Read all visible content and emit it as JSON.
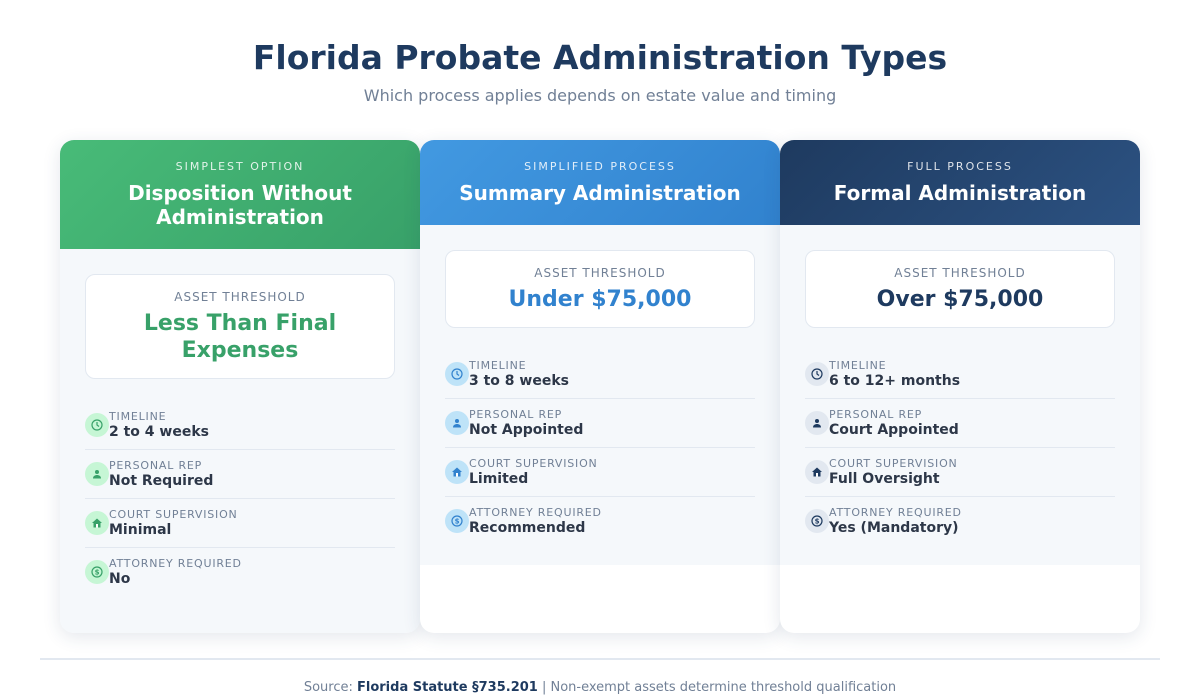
{
  "header": {
    "title": "Florida Probate Administration Types",
    "subtitle": "Which process applies depends on estate value and timing"
  },
  "cards": [
    {
      "label": "SIMPLEST OPTION",
      "name": "Disposition Without Administration",
      "threshold_label": "ASSET THRESHOLD",
      "threshold": "Less Than Final Expenses",
      "accent": "#38a169",
      "rows": [
        {
          "icon": "clock-icon",
          "label": "TIMELINE",
          "value": "2 to 4 weeks"
        },
        {
          "icon": "person-icon",
          "label": "PERSONAL REP",
          "value": "Not Required"
        },
        {
          "icon": "courthouse-icon",
          "label": "COURT SUPERVISION",
          "value": "Minimal"
        },
        {
          "icon": "dollar-icon",
          "label": "ATTORNEY REQUIRED",
          "value": "No"
        }
      ]
    },
    {
      "label": "SIMPLIFIED PROCESS",
      "name": "Summary Administration",
      "threshold_label": "ASSET THRESHOLD",
      "threshold": "Under $75,000",
      "accent": "#3182ce",
      "rows": [
        {
          "icon": "clock-icon",
          "label": "TIMELINE",
          "value": "3 to 8 weeks"
        },
        {
          "icon": "person-icon",
          "label": "PERSONAL REP",
          "value": "Not Appointed"
        },
        {
          "icon": "courthouse-icon",
          "label": "COURT SUPERVISION",
          "value": "Limited"
        },
        {
          "icon": "dollar-icon",
          "label": "ATTORNEY REQUIRED",
          "value": "Recommended"
        }
      ]
    },
    {
      "label": "FULL PROCESS",
      "name": "Formal Administration",
      "threshold_label": "ASSET THRESHOLD",
      "threshold": "Over $75,000",
      "accent": "#1e3a5f",
      "rows": [
        {
          "icon": "clock-icon",
          "label": "TIMELINE",
          "value": "6 to 12+ months"
        },
        {
          "icon": "person-icon",
          "label": "PERSONAL REP",
          "value": "Court Appointed"
        },
        {
          "icon": "courthouse-icon",
          "label": "COURT SUPERVISION",
          "value": "Full Oversight"
        },
        {
          "icon": "dollar-icon",
          "label": "ATTORNEY REQUIRED",
          "value": "Yes (Mandatory)"
        }
      ]
    }
  ],
  "footer": {
    "prefix": "Source: ",
    "source": "Florida Statute §735.201",
    "suffix": " | Non-exempt assets determine threshold qualification"
  }
}
